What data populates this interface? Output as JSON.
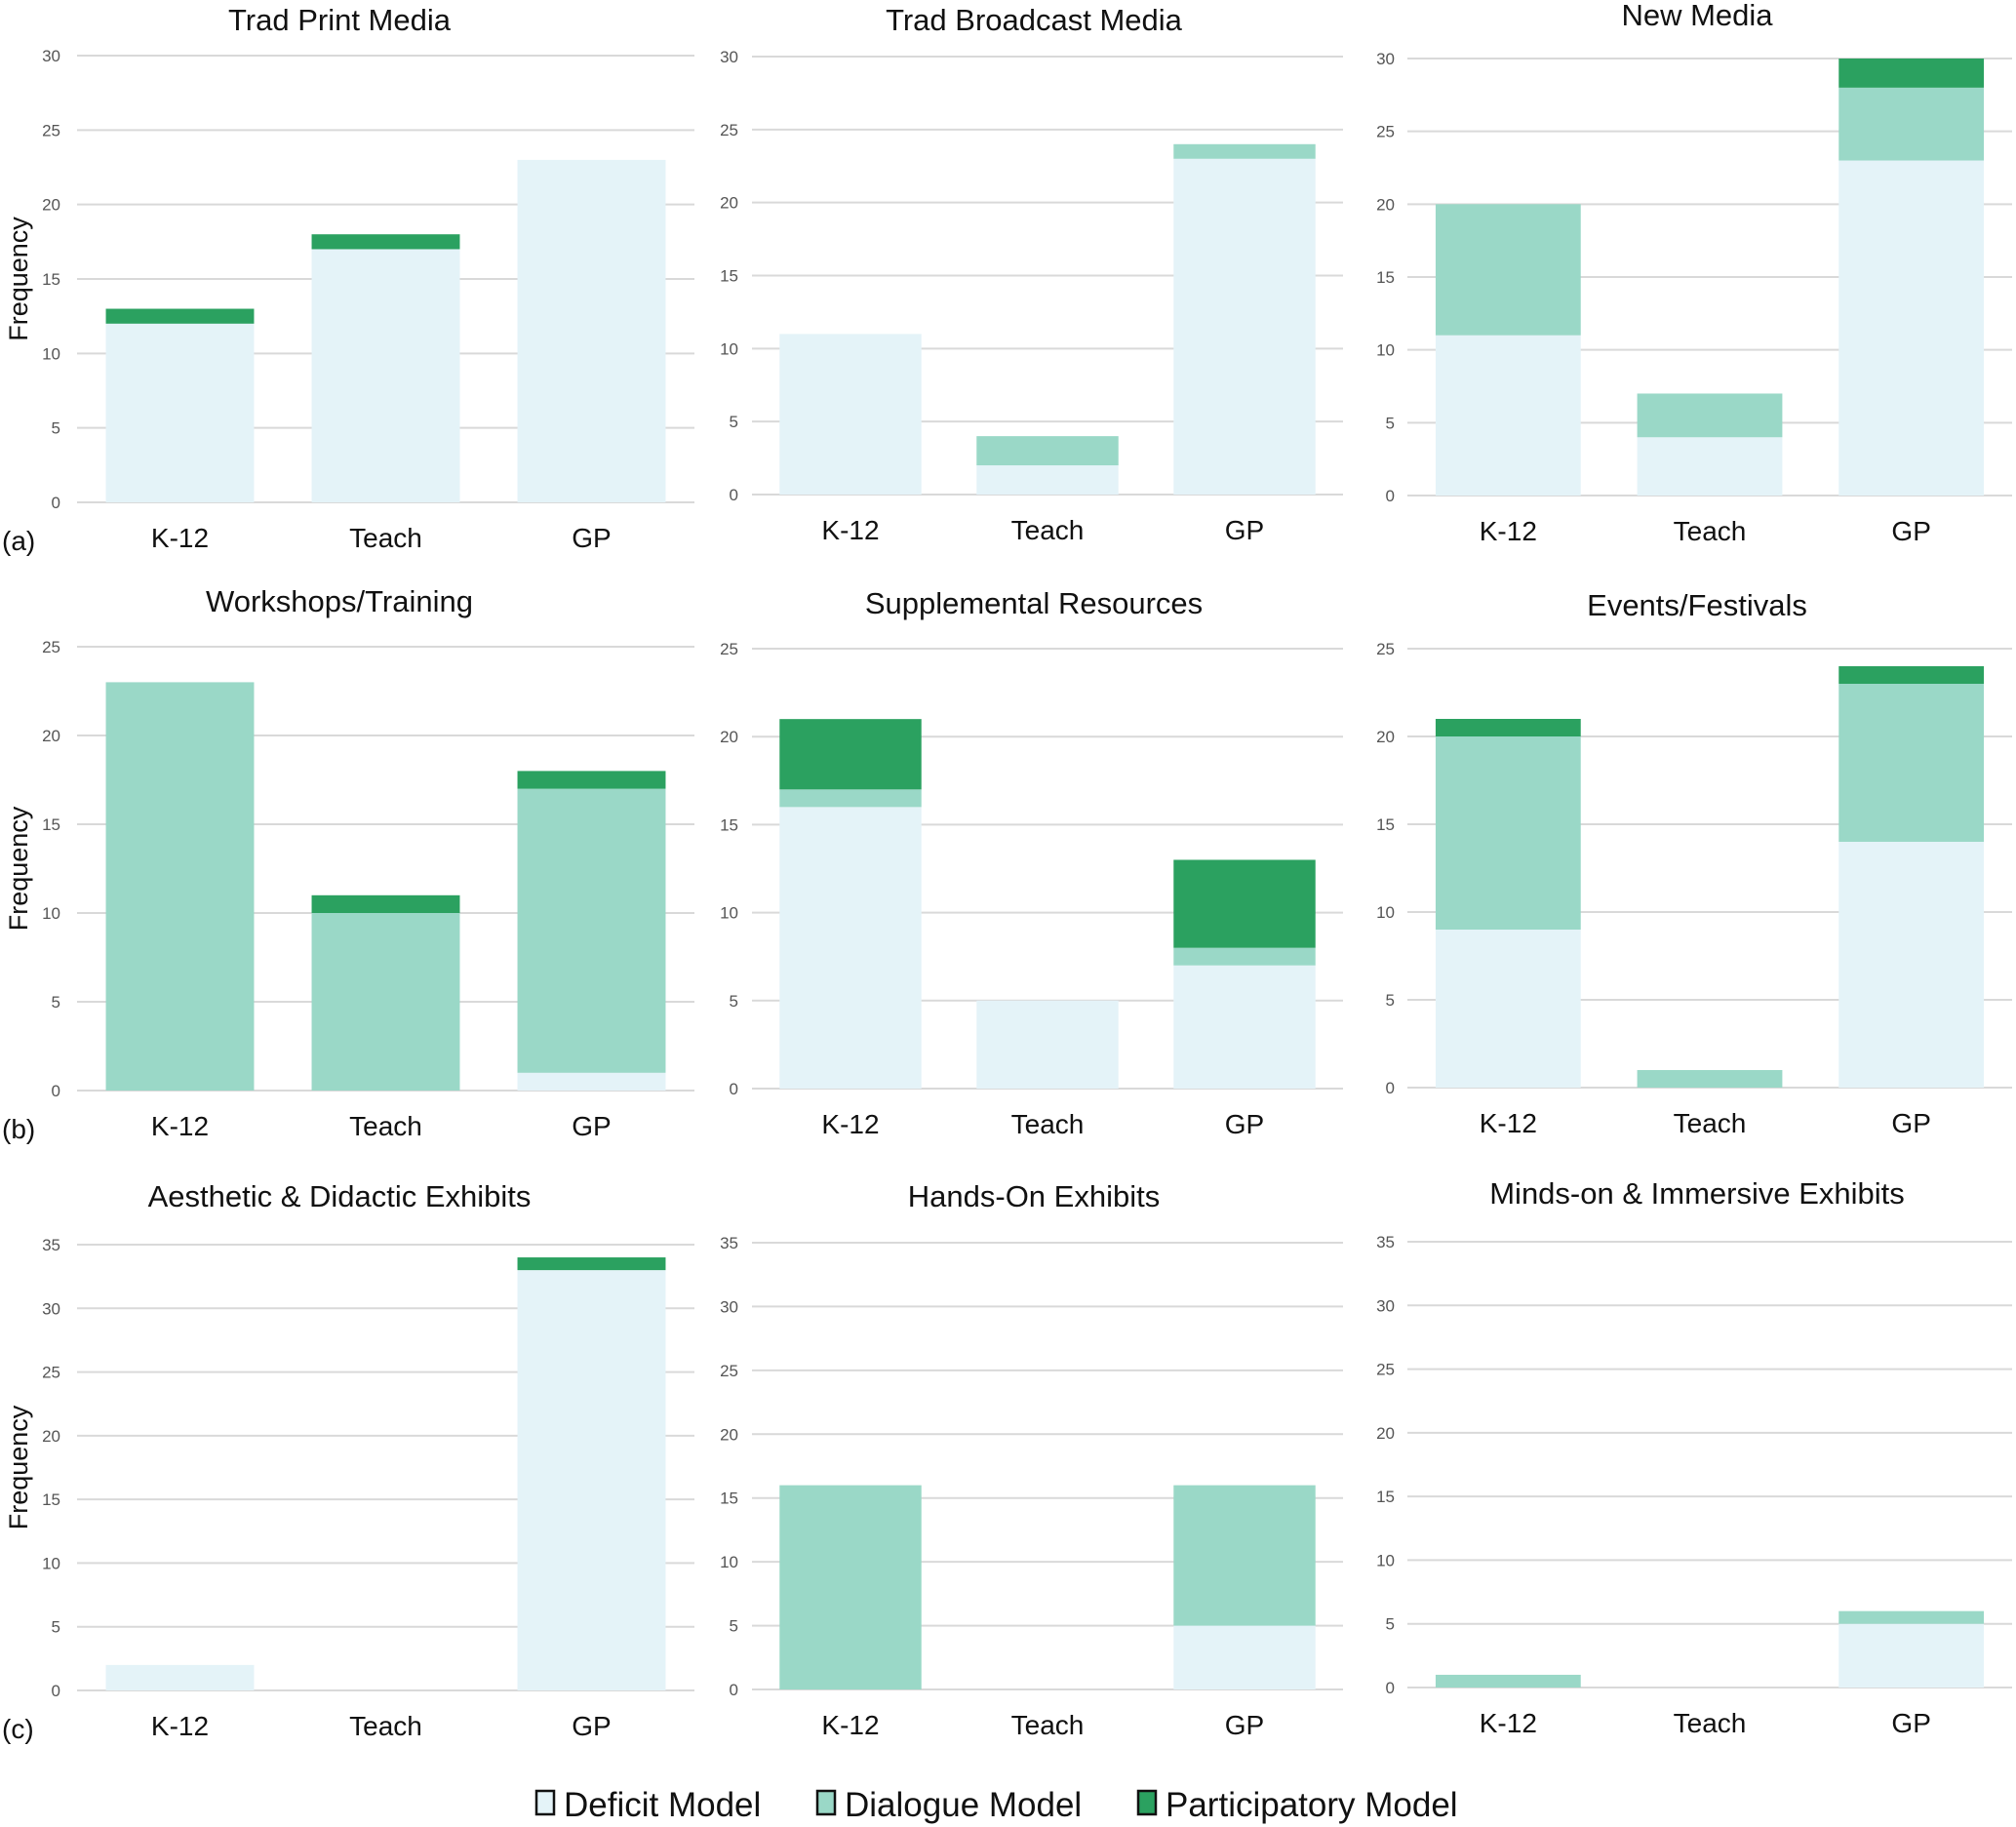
{
  "figure": {
    "row_labels": [
      "(a)",
      "(b)",
      "(c)"
    ],
    "ylabel": "Frequency",
    "legend": [
      {
        "label": "Deficit Model",
        "color": "#e4f3f8"
      },
      {
        "label": "Dialogue Model",
        "color": "#9ad8c7"
      },
      {
        "label": "Participatory Model",
        "color": "#2ba160"
      }
    ]
  },
  "chart_data": [
    {
      "type": "bar",
      "stacked": true,
      "title": "Trad Print Media",
      "categories": [
        "K-12",
        "Teach",
        "GP"
      ],
      "xlabel": "",
      "ylabel": "Frequency",
      "ylim": [
        0,
        30
      ],
      "yticks": [
        0,
        5,
        10,
        15,
        20,
        25,
        30
      ],
      "grid": true,
      "series": [
        {
          "name": "Deficit Model",
          "values": [
            12,
            17,
            23
          ]
        },
        {
          "name": "Dialogue Model",
          "values": [
            0,
            0,
            0
          ]
        },
        {
          "name": "Participatory Model",
          "values": [
            1,
            1,
            0
          ]
        }
      ]
    },
    {
      "type": "bar",
      "stacked": true,
      "title": "Trad Broadcast Media",
      "categories": [
        "K-12",
        "Teach",
        "GP"
      ],
      "xlabel": "",
      "ylabel": "",
      "ylim": [
        0,
        30
      ],
      "yticks": [
        0,
        5,
        10,
        15,
        20,
        25,
        30
      ],
      "grid": true,
      "series": [
        {
          "name": "Deficit Model",
          "values": [
            11,
            2,
            23
          ]
        },
        {
          "name": "Dialogue Model",
          "values": [
            0,
            2,
            1
          ]
        },
        {
          "name": "Participatory Model",
          "values": [
            0,
            0,
            0
          ]
        }
      ]
    },
    {
      "type": "bar",
      "stacked": true,
      "title": "New Media",
      "categories": [
        "K-12",
        "Teach",
        "GP"
      ],
      "xlabel": "",
      "ylabel": "",
      "ylim": [
        0,
        30
      ],
      "yticks": [
        0,
        5,
        10,
        15,
        20,
        25,
        30
      ],
      "grid": true,
      "series": [
        {
          "name": "Deficit Model",
          "values": [
            11,
            4,
            23
          ]
        },
        {
          "name": "Dialogue Model",
          "values": [
            9,
            3,
            5
          ]
        },
        {
          "name": "Participatory Model",
          "values": [
            0,
            0,
            2
          ]
        }
      ]
    },
    {
      "type": "bar",
      "stacked": true,
      "title": "Workshops/Training",
      "categories": [
        "K-12",
        "Teach",
        "GP"
      ],
      "xlabel": "",
      "ylabel": "Frequency",
      "ylim": [
        0,
        25
      ],
      "yticks": [
        0,
        5,
        10,
        15,
        20,
        25
      ],
      "grid": true,
      "series": [
        {
          "name": "Deficit Model",
          "values": [
            0,
            0,
            1
          ]
        },
        {
          "name": "Dialogue Model",
          "values": [
            23,
            10,
            16
          ]
        },
        {
          "name": "Participatory Model",
          "values": [
            0,
            1,
            1
          ]
        }
      ]
    },
    {
      "type": "bar",
      "stacked": true,
      "title": "Supplemental Resources",
      "categories": [
        "K-12",
        "Teach",
        "GP"
      ],
      "xlabel": "",
      "ylabel": "",
      "ylim": [
        0,
        25
      ],
      "yticks": [
        0,
        5,
        10,
        15,
        20,
        25
      ],
      "grid": true,
      "series": [
        {
          "name": "Deficit Model",
          "values": [
            16,
            5,
            7
          ]
        },
        {
          "name": "Dialogue Model",
          "values": [
            1,
            0,
            1
          ]
        },
        {
          "name": "Participatory Model",
          "values": [
            4,
            0,
            5
          ]
        }
      ]
    },
    {
      "type": "bar",
      "stacked": true,
      "title": "Events/Festivals",
      "categories": [
        "K-12",
        "Teach",
        "GP"
      ],
      "xlabel": "",
      "ylabel": "",
      "ylim": [
        0,
        25
      ],
      "yticks": [
        0,
        5,
        10,
        15,
        20,
        25
      ],
      "grid": true,
      "series": [
        {
          "name": "Deficit Model",
          "values": [
            9,
            0,
            14
          ]
        },
        {
          "name": "Dialogue Model",
          "values": [
            11,
            1,
            9
          ]
        },
        {
          "name": "Participatory Model",
          "values": [
            1,
            0,
            1
          ]
        }
      ]
    },
    {
      "type": "bar",
      "stacked": true,
      "title": "Aesthetic & Didactic Exhibits",
      "categories": [
        "K-12",
        "Teach",
        "GP"
      ],
      "xlabel": "",
      "ylabel": "Frequency",
      "ylim": [
        0,
        35
      ],
      "yticks": [
        0,
        5,
        10,
        15,
        20,
        25,
        30,
        35
      ],
      "grid": true,
      "series": [
        {
          "name": "Deficit Model",
          "values": [
            2,
            0,
            33
          ]
        },
        {
          "name": "Dialogue Model",
          "values": [
            0,
            0,
            0
          ]
        },
        {
          "name": "Participatory Model",
          "values": [
            0,
            0,
            1
          ]
        }
      ]
    },
    {
      "type": "bar",
      "stacked": true,
      "title": "Hands-On Exhibits",
      "categories": [
        "K-12",
        "Teach",
        "GP"
      ],
      "xlabel": "",
      "ylabel": "",
      "ylim": [
        0,
        35
      ],
      "yticks": [
        0,
        5,
        10,
        15,
        20,
        25,
        30,
        35
      ],
      "grid": true,
      "series": [
        {
          "name": "Deficit Model",
          "values": [
            0,
            0,
            5
          ]
        },
        {
          "name": "Dialogue Model",
          "values": [
            16,
            0,
            11
          ]
        },
        {
          "name": "Participatory Model",
          "values": [
            0,
            0,
            0
          ]
        }
      ]
    },
    {
      "type": "bar",
      "stacked": true,
      "title": "Minds-on & Immersive Exhibits",
      "categories": [
        "K-12",
        "Teach",
        "GP"
      ],
      "xlabel": "",
      "ylabel": "",
      "ylim": [
        0,
        35
      ],
      "yticks": [
        0,
        5,
        10,
        15,
        20,
        25,
        30,
        35
      ],
      "grid": true,
      "series": [
        {
          "name": "Deficit Model",
          "values": [
            0,
            0,
            5
          ]
        },
        {
          "name": "Dialogue Model",
          "values": [
            1,
            0,
            1
          ]
        },
        {
          "name": "Participatory Model",
          "values": [
            0,
            0,
            0
          ]
        }
      ]
    }
  ]
}
